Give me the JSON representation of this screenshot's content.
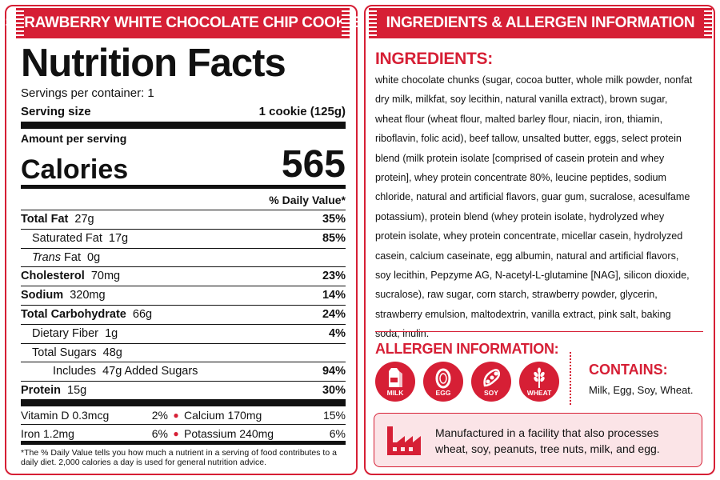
{
  "left_banner": "STRAWBERRY WHITE CHOCOLATE CHIP COOKIE",
  "right_banner": "INGREDIENTS & ALLERGEN INFORMATION",
  "nutrition": {
    "title": "Nutrition Facts",
    "servings_per_container": "Servings per container: 1",
    "serving_size_label": "Serving size",
    "serving_size_value": "1 cookie (125g)",
    "amount_per_serving": "Amount per serving",
    "calories_label": "Calories",
    "calories_value": "565",
    "dv_header": "% Daily Value*",
    "rows": [
      {
        "name": "Total Fat",
        "amount": "27g",
        "pct": "35%"
      },
      {
        "name": "Saturated Fat",
        "amount": "17g",
        "pct": "85%"
      },
      {
        "name": "Trans",
        "name_suffix": "Fat",
        "amount": "0g",
        "pct": ""
      },
      {
        "name": "Cholesterol",
        "amount": "70mg",
        "pct": "23%"
      },
      {
        "name": "Sodium",
        "amount": "320mg",
        "pct": "14%"
      },
      {
        "name": "Total Carbohydrate",
        "amount": "66g",
        "pct": "24%"
      },
      {
        "name": "Dietary Fiber",
        "amount": "1g",
        "pct": "4%"
      },
      {
        "name": "Total Sugars",
        "amount": "48g",
        "pct": ""
      },
      {
        "name": "Includes",
        "amount": "47g Added Sugars",
        "pct": "94%"
      },
      {
        "name": "Protein",
        "amount": "15g",
        "pct": "30%"
      }
    ],
    "vitamins": [
      {
        "name": "Vitamin D 0.3mcg",
        "pct": "2%",
        "name2": "Calcium 170mg",
        "pct2": "15%"
      },
      {
        "name": "Iron 1.2mg",
        "pct": "6%",
        "name2": "Potassium 240mg",
        "pct2": "6%"
      }
    ],
    "footnote": "*The % Daily Value tells you how much a nutrient in a serving of food contributes to a daily diet. 2,000 calories a day is used for general nutrition advice."
  },
  "ingredients": {
    "heading": "INGREDIENTS:",
    "text": "white chocolate chunks (sugar, cocoa butter, whole milk powder, nonfat dry milk, milkfat, soy lecithin, natural vanilla extract), brown sugar, wheat flour (wheat flour, malted barley flour, niacin, iron, thiamin, riboflavin, folic acid), beef tallow, unsalted butter, eggs, select protein blend (milk protein isolate [comprised of casein protein and whey protein], whey protein concentrate 80%, leucine peptides, sodium chloride, natural and artificial flavors, guar gum, sucralose, acesulfame potassium), protein blend (whey protein isolate, hydrolyzed whey protein isolate, whey protein concentrate, micellar casein, hydrolyzed casein, calcium caseinate, egg albumin, natural and artificial flavors, soy lecithin, Pepzyme AG, N-acetyl-L-glutamine [NAG], silicon dioxide, sucralose), raw sugar, corn starch, strawberry powder, glycerin, strawberry emulsion, maltodextrin, vanilla extract, pink salt, baking soda, inulin."
  },
  "allergen": {
    "heading": "ALLERGEN INFORMATION:",
    "icons": [
      {
        "label": "MILK",
        "icon": "milk-icon"
      },
      {
        "label": "EGG",
        "icon": "egg-icon"
      },
      {
        "label": "SOY",
        "icon": "soy-icon"
      },
      {
        "label": "WHEAT",
        "icon": "wheat-icon"
      }
    ],
    "contains_heading": "CONTAINS:",
    "contains_value": "Milk, Egg, Soy, Wheat."
  },
  "facility": {
    "icon": "factory-icon",
    "line1": "Manufactured in a facility that also processes",
    "line2": "wheat, soy, peanuts, tree nuts, milk, and egg."
  },
  "colors": {
    "accent": "#d61f35",
    "facility_bg": "#fbe4e7",
    "text": "#111111"
  }
}
